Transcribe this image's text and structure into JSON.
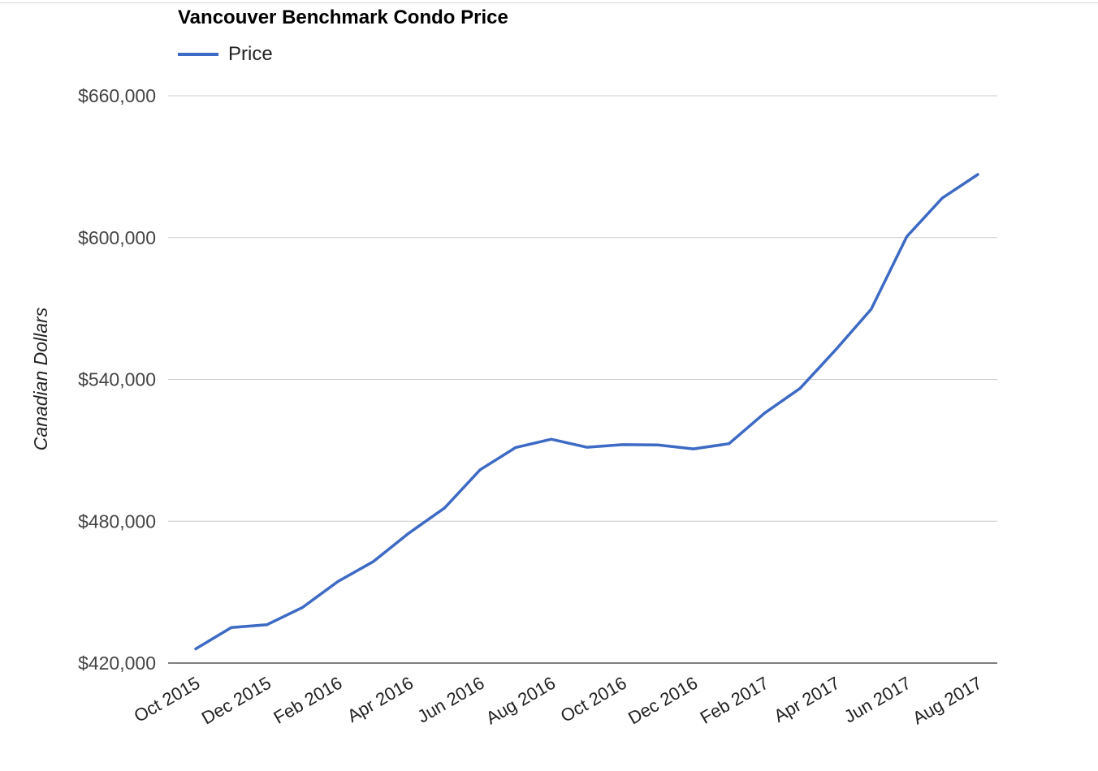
{
  "chart_data": {
    "type": "line",
    "title": "Vancouver Benchmark Condo Price",
    "xlabel": "",
    "ylabel": "Canadian Dollars",
    "legend": {
      "position": "top-left",
      "entries": [
        "Price"
      ]
    },
    "grid": true,
    "ylim": [
      420000,
      660000
    ],
    "yticks": [
      420000,
      480000,
      540000,
      600000,
      660000
    ],
    "ytick_labels": [
      "$420,000",
      "$480,000",
      "$540,000",
      "$600,000",
      "$660,000"
    ],
    "xtick_labels": [
      "Oct 2015",
      "Dec 2015",
      "Feb 2016",
      "Apr 2016",
      "Jun 2016",
      "Aug 2016",
      "Oct 2016",
      "Dec 2016",
      "Feb 2017",
      "Apr 2017",
      "Jun 2017",
      "Aug 2017"
    ],
    "x": [
      "Oct 2015",
      "Nov 2015",
      "Dec 2015",
      "Jan 2016",
      "Feb 2016",
      "Mar 2016",
      "Apr 2016",
      "May 2016",
      "Jun 2016",
      "Jul 2016",
      "Aug 2016",
      "Sep 2016",
      "Oct 2016",
      "Nov 2016",
      "Dec 2016",
      "Jan 2017",
      "Feb 2017",
      "Mar 2017",
      "Apr 2017",
      "May 2017",
      "Jun 2017",
      "Jul 2017",
      "Aug 2017"
    ],
    "series": [
      {
        "name": "Price",
        "color": "#3c6ac4",
        "values": [
          426000,
          435000,
          436200,
          443500,
          454500,
          463000,
          475000,
          485600,
          501800,
          511200,
          514700,
          511300,
          512400,
          512300,
          510600,
          512800,
          525700,
          536200,
          552500,
          569700,
          600400,
          616700,
          626700
        ]
      }
    ]
  }
}
